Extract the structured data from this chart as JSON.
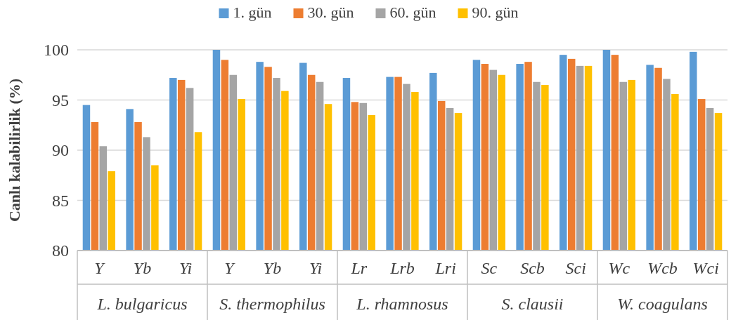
{
  "chart_data": {
    "type": "bar",
    "ylabel": "Canlı kalabilirlik (%)",
    "categories": [
      "Y",
      "Yb",
      "Yi",
      "Y",
      "Yb",
      "Yi",
      "Lr",
      "Lrb",
      "Lri",
      "Sc",
      "Scb",
      "Sci",
      "Wc",
      "Wcb",
      "Wci"
    ],
    "annotations": [
      "L. bulgaricus",
      "S. thermophilus",
      "L. rhamnosus",
      "S. clausii",
      "W. coagulans"
    ],
    "series": [
      {
        "name": "1. gün",
        "color": "#5b9bd5",
        "values": [
          94.5,
          94.1,
          97.2,
          100.0,
          98.8,
          98.7,
          97.2,
          97.3,
          97.7,
          99.0,
          98.6,
          99.5,
          100.0,
          98.5,
          99.8
        ]
      },
      {
        "name": "30. gün",
        "color": "#ed7d31",
        "values": [
          92.8,
          92.8,
          97.0,
          99.0,
          98.3,
          97.5,
          94.8,
          97.3,
          94.9,
          98.6,
          98.8,
          99.1,
          99.5,
          98.2,
          95.1
        ]
      },
      {
        "name": "60. gün",
        "color": "#a5a5a5",
        "values": [
          90.4,
          91.3,
          96.2,
          97.5,
          97.2,
          96.8,
          94.7,
          96.6,
          94.2,
          98.0,
          96.8,
          98.4,
          96.8,
          97.1,
          94.2
        ]
      },
      {
        "name": "90. gün",
        "color": "#ffc000",
        "values": [
          87.9,
          88.5,
          91.8,
          95.1,
          95.9,
          94.6,
          93.5,
          95.8,
          93.7,
          97.5,
          96.5,
          98.4,
          97.0,
          95.6,
          93.7
        ]
      }
    ],
    "ylim": [
      80,
      100
    ],
    "yticks": [
      80,
      85,
      90,
      95,
      100
    ],
    "grid": "y",
    "legend": "top"
  }
}
